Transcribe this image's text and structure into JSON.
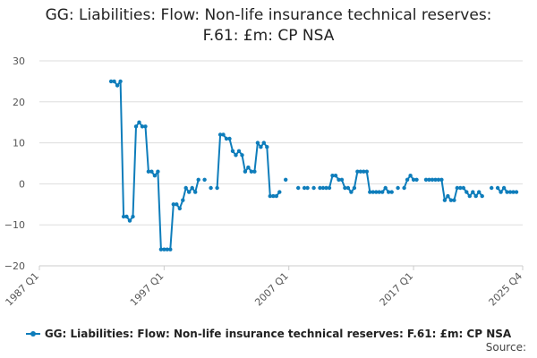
{
  "chart_data": {
    "type": "line",
    "title_lines": [
      "GG: Liabilities: Flow: Non-life insurance technical reserves:",
      "F.61: £m: CP NSA"
    ],
    "xlabel": "",
    "ylabel": "",
    "ylim": [
      -20,
      30
    ],
    "yticks": [
      -20,
      -10,
      0,
      10,
      20,
      30
    ],
    "x_start": "1987 Q1",
    "x_end": "2025 Q4",
    "x_tick_labels": [
      {
        "label": "1987 Q1",
        "index": 0
      },
      {
        "label": "1997 Q1",
        "index": 40
      },
      {
        "label": "2007 Q1",
        "index": 80
      },
      {
        "label": "2017 Q1",
        "index": 120
      },
      {
        "label": "2025 Q4",
        "index": 155
      }
    ],
    "colors": {
      "series": "#0e7dbb",
      "grid": "#dddddd",
      "axis": "#cccccc"
    },
    "series": [
      {
        "name": "GG: Liabilities: Flow: Non-life insurance technical reserves: F.61: £m: CP NSA",
        "start_index": 23,
        "values": [
          25,
          25,
          24,
          25,
          -8,
          -8,
          -9,
          -8,
          14,
          15,
          14,
          14,
          3,
          3,
          2,
          3,
          -16,
          -16,
          -16,
          -16,
          -5,
          -5,
          -6,
          -4,
          -1,
          -2,
          -1,
          -2,
          1,
          null,
          1,
          null,
          -1,
          null,
          -1,
          12,
          12,
          11,
          11,
          8,
          7,
          8,
          7,
          3,
          4,
          3,
          3,
          10,
          9,
          10,
          9,
          -3,
          -3,
          -3,
          -2,
          null,
          1,
          null,
          null,
          null,
          -1,
          null,
          -1,
          -1,
          null,
          -1,
          null,
          -1,
          -1,
          -1,
          -1,
          2,
          2,
          1,
          1,
          -1,
          -1,
          -2,
          -1,
          3,
          3,
          3,
          3,
          -2,
          -2,
          -2,
          -2,
          -2,
          -1,
          -2,
          -2,
          null,
          -1,
          null,
          -1,
          1,
          2,
          1,
          1,
          null,
          null,
          1,
          1,
          1,
          1,
          1,
          1,
          -4,
          -3,
          -4,
          -4,
          -1,
          -1,
          -1,
          -2,
          -3,
          -2,
          -3,
          -2,
          -3,
          null,
          null,
          -1,
          null,
          -1,
          -2,
          -1,
          -2,
          -2,
          -2,
          -2
        ]
      }
    ]
  },
  "source_label": "Source:"
}
